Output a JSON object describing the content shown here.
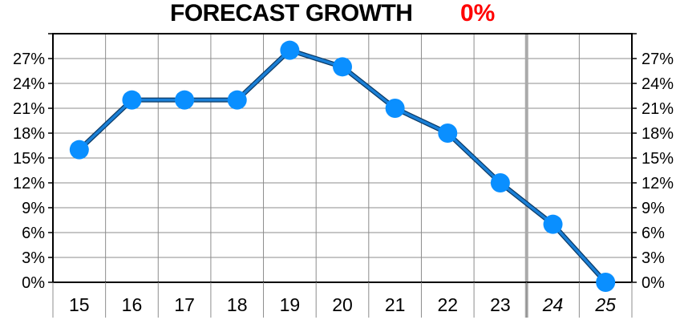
{
  "header": {
    "title": "FORECAST GROWTH",
    "forecast_value": "0%",
    "forecast_color": "#ff0000"
  },
  "chart_data": {
    "type": "line",
    "title": "FORECAST GROWTH",
    "xlabel": "",
    "ylabel": "",
    "categories": [
      "15",
      "16",
      "17",
      "18",
      "19",
      "20",
      "21",
      "22",
      "23",
      "24",
      "25"
    ],
    "forecast_categories": [
      "24",
      "25"
    ],
    "values": [
      16,
      22,
      22,
      22,
      28,
      26,
      21,
      18,
      12,
      7,
      0
    ],
    "yticks": [
      0,
      3,
      6,
      9,
      12,
      15,
      18,
      21,
      24,
      27
    ],
    "ytick_labels": [
      "0%",
      "3%",
      "6%",
      "9%",
      "12%",
      "15%",
      "18%",
      "21%",
      "24%",
      "27%"
    ],
    "ylim": [
      0,
      30
    ],
    "y_axes": "left and right",
    "grid": true,
    "line_color": "#1a7fd6",
    "marker_color": "#0a8fff",
    "forecast_divider_color": "#aaaaaa",
    "grid_color": "#8c8c8c"
  }
}
